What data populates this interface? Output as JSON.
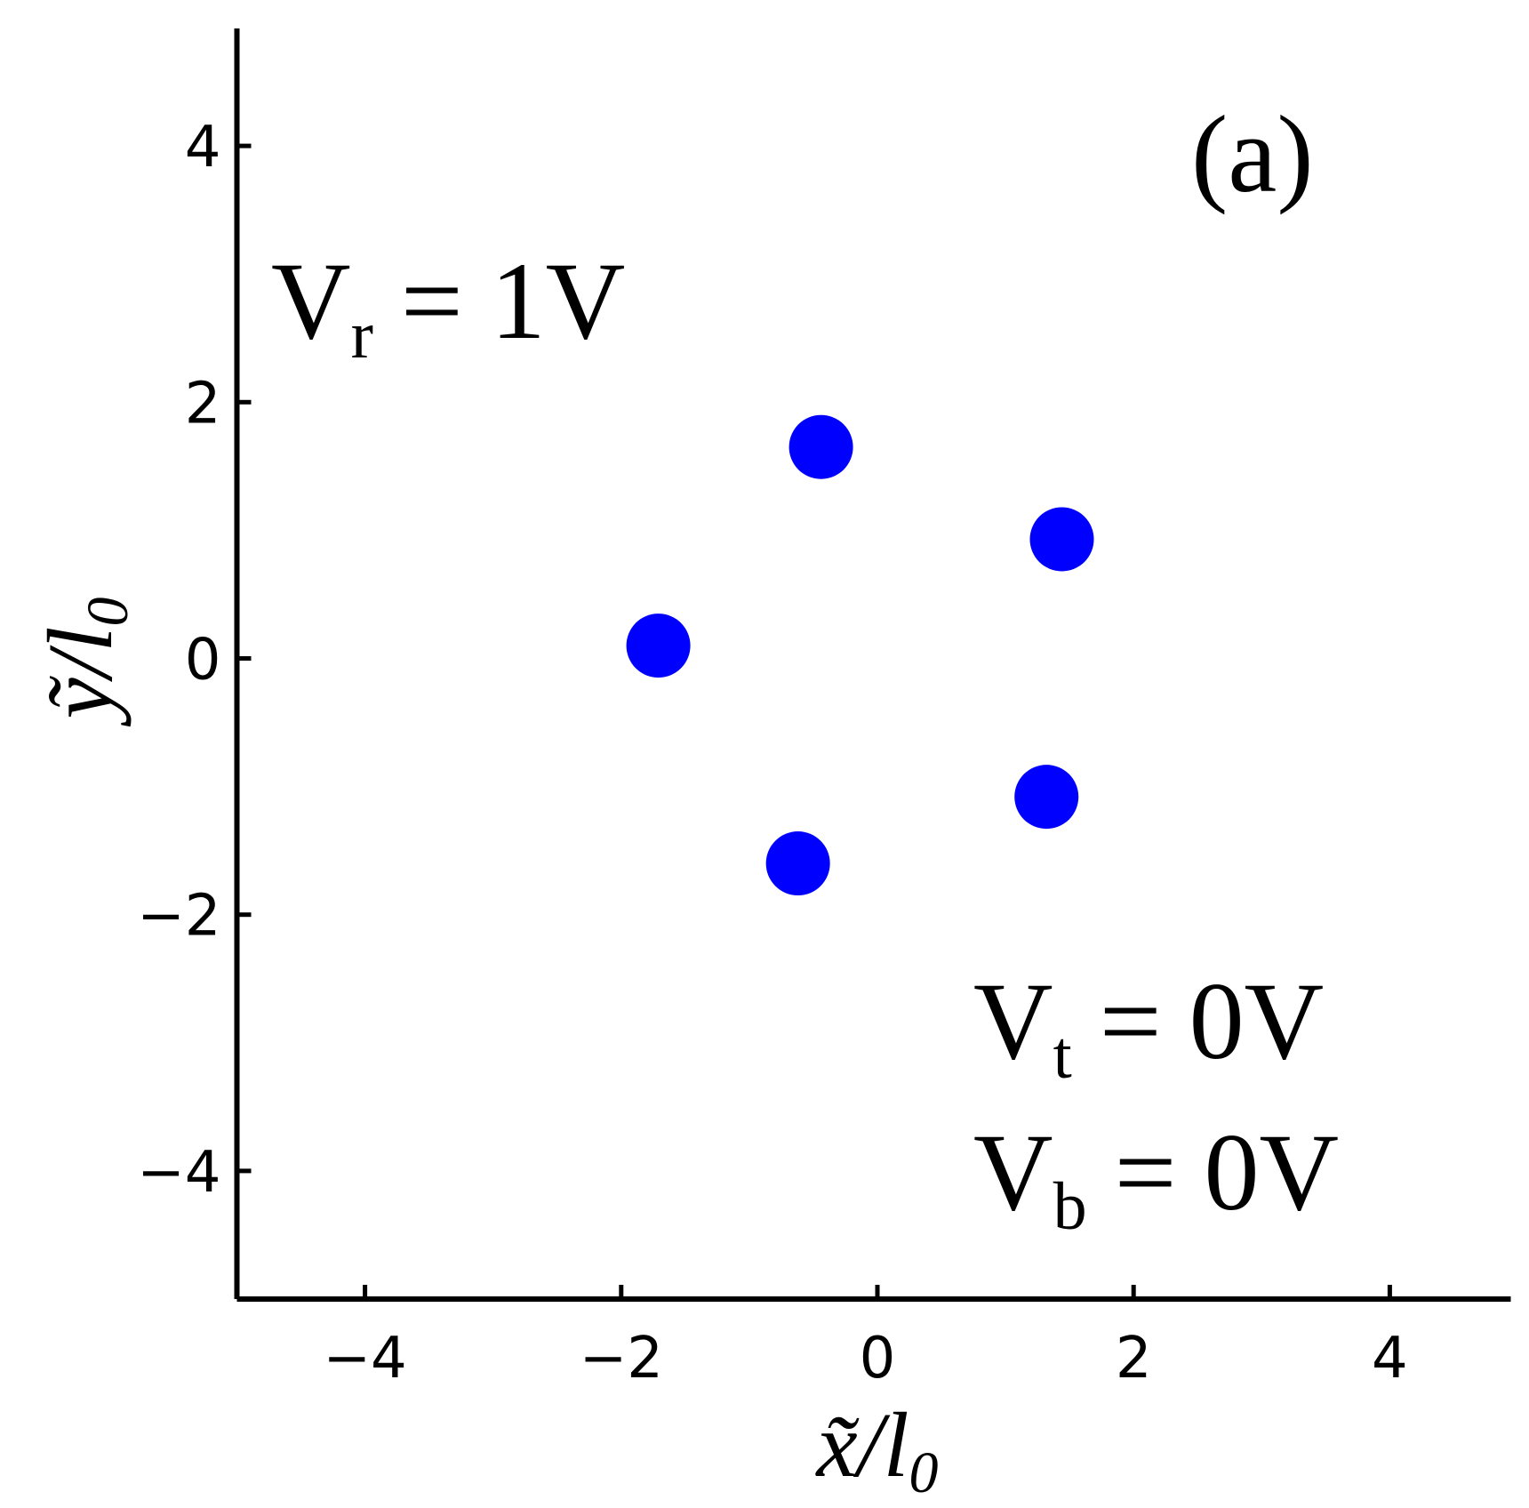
{
  "chart_data": {
    "type": "scatter",
    "xlabel": {
      "base": "x̃/l",
      "sub": "0"
    },
    "ylabel": {
      "base": "ỹ/l",
      "sub": "0"
    },
    "annotations": [
      {
        "text": "(a)"
      },
      {
        "text": "V",
        "sub": "r",
        "rest": " = 1V"
      },
      {
        "text": "V",
        "sub": "t",
        "rest": " = 0V"
      },
      {
        "text": "V",
        "sub": "b",
        "rest": " = 0V"
      }
    ],
    "series": [
      {
        "color": "#0000ff",
        "x": [
          -1.71,
          -0.44,
          1.44,
          1.32,
          -0.62
        ],
        "values": [
          0.1,
          1.65,
          0.93,
          -1.08,
          -1.6
        ]
      }
    ],
    "xlim": [
      -5,
      5
    ],
    "ylim": [
      -5,
      5
    ],
    "xticks": [
      {
        "value": -4,
        "label": "−4"
      },
      {
        "value": -2,
        "label": "−2"
      },
      0,
      2,
      4
    ],
    "yticks": [
      {
        "value": -4,
        "label": "−4"
      },
      {
        "value": -2,
        "label": "−2"
      },
      0,
      2,
      4
    ]
  }
}
